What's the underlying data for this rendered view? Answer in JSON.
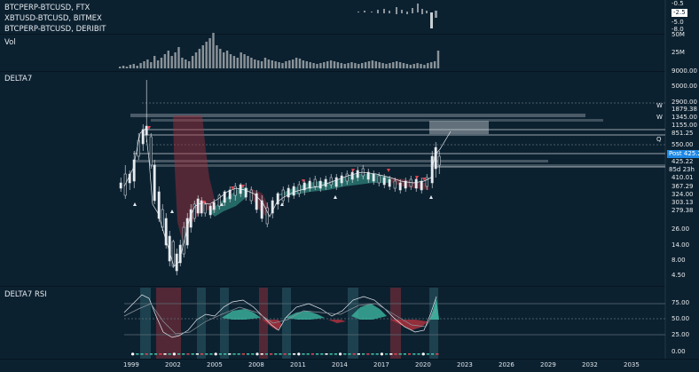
{
  "legend": {
    "symbols": [
      "BTCPERP-BTCUSD, FTX",
      "XBTUSD-BTCUSD, BITMEX",
      "BTCPERP-BTCUSD, DERIBIT"
    ],
    "vol_label": "Vol",
    "delta_label": "DELTA7",
    "rsi_label": "DELTA7 RSI"
  },
  "top_axis": {
    "labels": [
      "-0.5",
      "-2.5",
      "-5.0",
      "-8.0"
    ],
    "highlight_color": "#ffffff"
  },
  "vol_axis": {
    "labels": [
      "50M",
      "25M"
    ]
  },
  "price_axis": {
    "labels": [
      "9000.00",
      "5000.00",
      "2900.00",
      "1879.38",
      "1345.00",
      "1155.00",
      "851.25",
      "550.00",
      "425.22",
      "410.01",
      "367.29",
      "324.00",
      "303.13",
      "279.38",
      "26.00",
      "14.00",
      "8.00",
      "4.50"
    ],
    "post_label": "Post",
    "post_value": "425.29",
    "countdown": "85d 23h",
    "accent_color": "#1e88e5"
  },
  "level_markers": [
    "W",
    "W",
    "Q"
  ],
  "rsi_axis": {
    "labels": [
      "75.00",
      "50.00",
      "25.00",
      "0.00"
    ]
  },
  "time_axis": {
    "years": [
      "1999",
      "2002",
      "2005",
      "2008",
      "2011",
      "2014",
      "2017",
      "2020",
      "2023",
      "2026",
      "2029",
      "2032",
      "2035"
    ]
  },
  "colors": {
    "background": "#0c2130",
    "bull": "#3fbfa6",
    "bear": "#c0333f"
  }
}
